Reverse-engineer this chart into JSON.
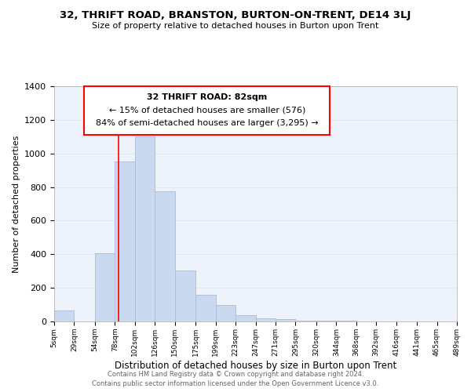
{
  "title": "32, THRIFT ROAD, BRANSTON, BURTON-ON-TRENT, DE14 3LJ",
  "subtitle": "Size of property relative to detached houses in Burton upon Trent",
  "xlabel": "Distribution of detached houses by size in Burton upon Trent",
  "ylabel": "Number of detached properties",
  "bar_left_edges": [
    5,
    29,
    54,
    78,
    102,
    126,
    150,
    175,
    199,
    223,
    247,
    271,
    295,
    320,
    344,
    368,
    392,
    416,
    441,
    465
  ],
  "bar_widths": [
    24,
    25,
    24,
    24,
    24,
    24,
    25,
    24,
    24,
    24,
    24,
    24,
    25,
    24,
    24,
    24,
    24,
    25,
    24,
    24
  ],
  "bar_heights": [
    65,
    0,
    405,
    950,
    1100,
    775,
    305,
    160,
    100,
    38,
    20,
    15,
    5,
    5,
    3,
    2,
    0,
    0,
    0,
    0
  ],
  "bar_color": "#c9d9f0",
  "bar_edgecolor": "#aabbd8",
  "xlim_left": 5,
  "xlim_right": 489,
  "ylim_top": 1400,
  "yticks": [
    0,
    200,
    400,
    600,
    800,
    1000,
    1200,
    1400
  ],
  "xtick_labels": [
    "5sqm",
    "29sqm",
    "54sqm",
    "78sqm",
    "102sqm",
    "126sqm",
    "150sqm",
    "175sqm",
    "199sqm",
    "223sqm",
    "247sqm",
    "271sqm",
    "295sqm",
    "320sqm",
    "344sqm",
    "368sqm",
    "392sqm",
    "416sqm",
    "441sqm",
    "465sqm",
    "489sqm"
  ],
  "xtick_positions": [
    5,
    29,
    54,
    78,
    102,
    126,
    150,
    175,
    199,
    223,
    247,
    271,
    295,
    320,
    344,
    368,
    392,
    416,
    441,
    465,
    489
  ],
  "red_line_x": 82,
  "annotation_title": "32 THRIFT ROAD: 82sqm",
  "annotation_line1": "← 15% of detached houses are smaller (576)",
  "annotation_line2": "84% of semi-detached houses are larger (3,295) →",
  "footer_line1": "Contains HM Land Registry data © Crown copyright and database right 2024.",
  "footer_line2": "Contains public sector information licensed under the Open Government Licence v3.0.",
  "grid_color": "#dde8f5",
  "background_color": "#eef2fa"
}
